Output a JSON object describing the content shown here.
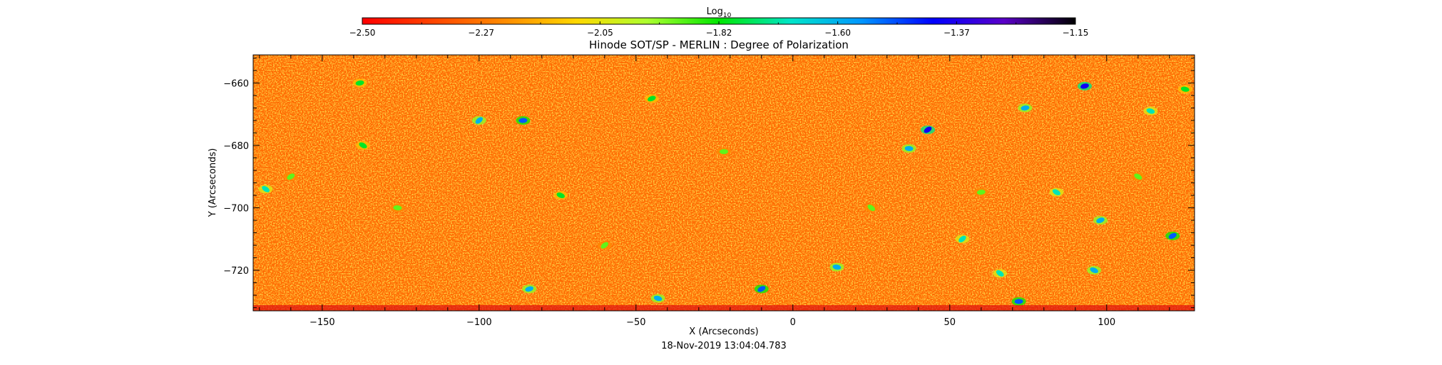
{
  "chart_data": {
    "type": "heatmap",
    "title": "Hinode SOT/SP - MERLIN : Degree of Polarization",
    "xlabel": "X (Arcseconds)",
    "ylabel": "Y (Arcseconds)",
    "xlim": [
      -172,
      128
    ],
    "ylim": [
      -733,
      -651
    ],
    "x_ticks": [
      -150,
      -100,
      -50,
      0,
      50,
      100
    ],
    "y_ticks": [
      -660,
      -680,
      -700,
      -720
    ],
    "x_minor_step": 10,
    "y_minor_step": 4,
    "colorbar": {
      "label_base": "Log",
      "label_sub": "10",
      "range": [
        -2.5,
        -1.15
      ],
      "ticks": [
        "-2.50",
        "-2.27",
        "-2.05",
        "-1.82",
        "-1.60",
        "-1.37",
        "-1.15"
      ],
      "colormap": [
        "#ff0000",
        "#ff4500",
        "#ff8c00",
        "#ffd700",
        "#adff2f",
        "#00e600",
        "#00e5c8",
        "#0096ff",
        "#0000ff",
        "#5a00c8",
        "#000000"
      ]
    },
    "background_level": -2.3,
    "features": [
      {
        "x": -100,
        "y": -672,
        "v": -1.6
      },
      {
        "x": -86,
        "y": -672,
        "v": -1.5
      },
      {
        "x": -168,
        "y": -694,
        "v": -1.7
      },
      {
        "x": -138,
        "y": -660,
        "v": -1.8
      },
      {
        "x": -137,
        "y": -680,
        "v": -1.8
      },
      {
        "x": -84,
        "y": -726,
        "v": -1.6
      },
      {
        "x": -74,
        "y": -696,
        "v": -1.8
      },
      {
        "x": -45,
        "y": -665,
        "v": -1.8
      },
      {
        "x": -43,
        "y": -729,
        "v": -1.6
      },
      {
        "x": -10,
        "y": -726,
        "v": -1.5
      },
      {
        "x": 14,
        "y": -719,
        "v": -1.6
      },
      {
        "x": 43,
        "y": -675,
        "v": -1.4
      },
      {
        "x": 37,
        "y": -681,
        "v": -1.6
      },
      {
        "x": 54,
        "y": -710,
        "v": -1.7
      },
      {
        "x": 72,
        "y": -730,
        "v": -1.5
      },
      {
        "x": 66,
        "y": -721,
        "v": -1.7
      },
      {
        "x": 74,
        "y": -668,
        "v": -1.6
      },
      {
        "x": 84,
        "y": -695,
        "v": -1.7
      },
      {
        "x": 93,
        "y": -661,
        "v": -1.4
      },
      {
        "x": 96,
        "y": -720,
        "v": -1.6
      },
      {
        "x": 98,
        "y": -704,
        "v": -1.6
      },
      {
        "x": 114,
        "y": -669,
        "v": -1.7
      },
      {
        "x": 121,
        "y": -709,
        "v": -1.5
      },
      {
        "x": 125,
        "y": -662,
        "v": -1.8
      },
      {
        "x": -160,
        "y": -690,
        "v": -1.9
      },
      {
        "x": -126,
        "y": -700,
        "v": -1.9
      },
      {
        "x": -60,
        "y": -712,
        "v": -1.9
      },
      {
        "x": -22,
        "y": -682,
        "v": -1.9
      },
      {
        "x": 25,
        "y": -700,
        "v": -1.9
      },
      {
        "x": 60,
        "y": -695,
        "v": -1.9
      },
      {
        "x": 110,
        "y": -690,
        "v": -1.9
      }
    ]
  },
  "timestamp": "18-Nov-2019 13:04:04.783"
}
